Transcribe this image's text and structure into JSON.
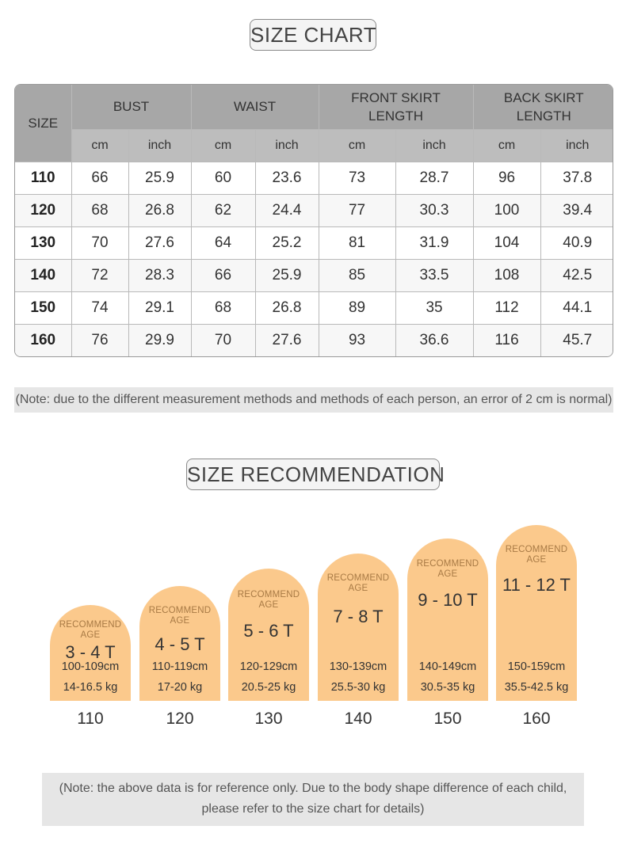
{
  "chart_title": "SIZE CHART",
  "table": {
    "size_header": "SIZE",
    "groups": [
      "BUST",
      "WAIST",
      "FRONT SKIRT LENGTH",
      "BACK SKIRT LENGTH"
    ],
    "groups_line1": [
      "BUST",
      "WAIST",
      "FRONT SKIRT",
      "BACK SKIRT"
    ],
    "groups_line2": [
      "",
      "",
      "LENGTH",
      "LENGTH"
    ],
    "units": [
      "cm",
      "inch",
      "cm",
      "inch",
      "cm",
      "inch",
      "cm",
      "inch"
    ],
    "rows": [
      [
        "110",
        "66",
        "25.9",
        "60",
        "23.6",
        "73",
        "28.7",
        "96",
        "37.8"
      ],
      [
        "120",
        "68",
        "26.8",
        "62",
        "24.4",
        "77",
        "30.3",
        "100",
        "39.4"
      ],
      [
        "130",
        "70",
        "27.6",
        "64",
        "25.2",
        "81",
        "31.9",
        "104",
        "40.9"
      ],
      [
        "140",
        "72",
        "28.3",
        "66",
        "25.9",
        "85",
        "33.5",
        "108",
        "42.5"
      ],
      [
        "150",
        "74",
        "29.1",
        "68",
        "26.8",
        "89",
        "35",
        "112",
        "44.1"
      ],
      [
        "160",
        "76",
        "29.9",
        "70",
        "27.6",
        "93",
        "36.6",
        "116",
        "45.7"
      ]
    ]
  },
  "note_measure": "(Note: due to the different measurement methods and methods of each person, an error of 2 cm is normal)",
  "recommend_title": "SIZE RECOMMENDATION",
  "recommend_label": "RECOMMEND AGE",
  "recommend_line1": "RECOMMEND",
  "recommend_line2": "AGE",
  "accent_color": "#fbc98c",
  "recommendations": [
    {
      "age": "3 - 4 T",
      "height": "100-109cm",
      "weight": "14-16.5 kg",
      "size": "110"
    },
    {
      "age": "4 - 5 T",
      "height": "110-119cm",
      "weight": "17-20 kg",
      "size": "120"
    },
    {
      "age": "5 - 6 T",
      "height": "120-129cm",
      "weight": "20.5-25 kg",
      "size": "130"
    },
    {
      "age": "7 - 8 T",
      "height": "130-139cm",
      "weight": "25.5-30 kg",
      "size": "140"
    },
    {
      "age": "9 - 10 T",
      "height": "140-149cm",
      "weight": "30.5-35 kg",
      "size": "150"
    },
    {
      "age": "11 - 12 T",
      "height": "150-159cm",
      "weight": "35.5-42.5 kg",
      "size": "160"
    }
  ],
  "note_reference_line1": "(Note: the above data is for reference only. Due to the body shape difference of each child,",
  "note_reference_line2": "please refer to the size chart for details)"
}
